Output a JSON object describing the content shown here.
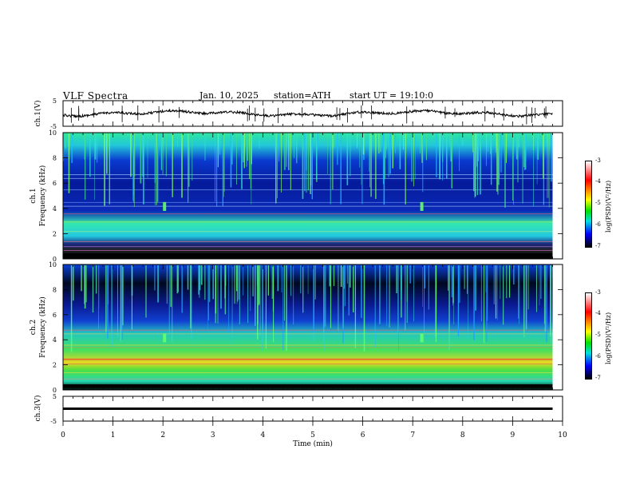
{
  "header": {
    "title": "VLF Spectra",
    "date": "Jan. 10, 2025",
    "station": "station=ATH",
    "start": "start UT =   19:10:0"
  },
  "chart_data": [
    {
      "type": "line",
      "name": "ch1-waveform",
      "ylabel": "ch.1(V)",
      "yticks": [
        "5",
        "-5"
      ],
      "ylim": [
        -5,
        5
      ]
    },
    {
      "type": "heatmap",
      "name": "ch1-spectrogram",
      "ylabel": "ch.1\nFrequency (kHz)",
      "ylabel_line1": "ch.1",
      "ylabel_line2": "Frequency (kHz)",
      "yticks": [
        "0",
        "2",
        "4",
        "6",
        "8",
        "10"
      ],
      "ylim": [
        0,
        10
      ],
      "colorbar": {
        "label": "log(PSD)(V²/Hz)",
        "ticks": [
          "-3",
          "-4",
          "-5",
          "-6",
          "-7"
        ],
        "range": [
          -7,
          -3
        ]
      }
    },
    {
      "type": "heatmap",
      "name": "ch2-spectrogram",
      "ylabel_line1": "ch.2",
      "ylabel_line2": "Frequency (kHz)",
      "yticks": [
        "0",
        "2",
        "4",
        "6",
        "8",
        "10"
      ],
      "ylim": [
        0,
        10
      ],
      "colorbar": {
        "label": "log(PSD)(V²/Hz)",
        "ticks": [
          "-3",
          "-4",
          "-5",
          "-6",
          "-7"
        ],
        "range": [
          -7,
          -3
        ]
      }
    },
    {
      "type": "line",
      "name": "ch3-waveform",
      "ylabel": "ch.3(V)",
      "yticks": [
        "5",
        "-5"
      ],
      "ylim": [
        -5,
        5
      ]
    }
  ],
  "xaxis": {
    "label": "Time (min)",
    "ticks": [
      "0",
      "1",
      "2",
      "3",
      "4",
      "5",
      "6",
      "7",
      "8",
      "9",
      "10"
    ],
    "xlim": [
      0,
      10
    ],
    "data_end": 9.8
  }
}
